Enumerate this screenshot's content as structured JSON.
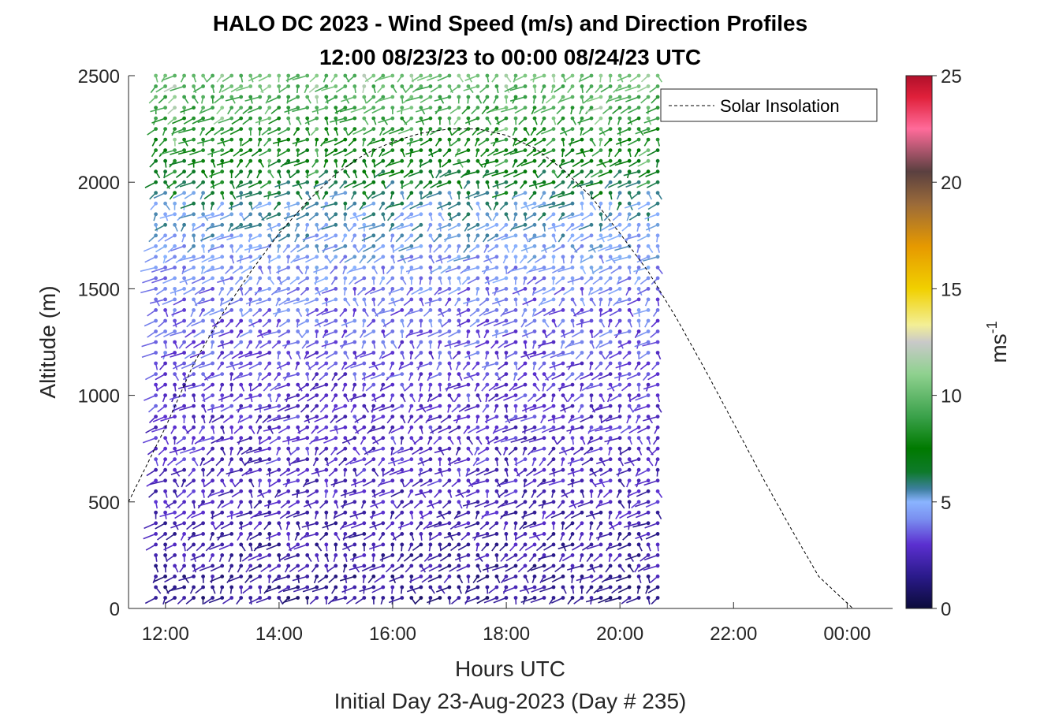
{
  "chart_data": {
    "type": "wind-barb-profile",
    "title_line1": "HALO DC 2023 - Wind Speed (m/s) and Direction Profiles",
    "title_line2": "12:00 08/23/23 to 00:00 08/24/23  UTC",
    "xlabel": "Hours UTC",
    "xlabel2": "Initial Day 23-Aug-2023 (Day # 235)",
    "ylabel": "Altitude (m)",
    "xlim": [
      11.35,
      24.8
    ],
    "ylim": [
      0,
      2500
    ],
    "x_ticks": [
      {
        "value": 12,
        "label": "12:00"
      },
      {
        "value": 14,
        "label": "14:00"
      },
      {
        "value": 16,
        "label": "16:00"
      },
      {
        "value": 18,
        "label": "18:00"
      },
      {
        "value": 20,
        "label": "20:00"
      },
      {
        "value": 22,
        "label": "22:00"
      },
      {
        "value": 24,
        "label": "00:00"
      }
    ],
    "y_ticks": [
      0,
      500,
      1000,
      1500,
      2000,
      2500
    ],
    "legend": {
      "entry": "Solar Insolation",
      "placement": "top-right"
    },
    "colorbar": {
      "label": "ms",
      "exponent": "-1",
      "min": 0,
      "max": 25,
      "ticks": [
        0,
        5,
        10,
        15,
        20,
        25
      ]
    },
    "solar_insolation_curve": [
      {
        "x": 11.35,
        "y": 500
      },
      {
        "x": 12.0,
        "y": 850
      },
      {
        "x": 12.5,
        "y": 1150
      },
      {
        "x": 13.0,
        "y": 1380
      },
      {
        "x": 13.5,
        "y": 1580
      },
      {
        "x": 14.0,
        "y": 1760
      },
      {
        "x": 14.5,
        "y": 1910
      },
      {
        "x": 15.0,
        "y": 2040
      },
      {
        "x": 15.5,
        "y": 2130
      },
      {
        "x": 16.0,
        "y": 2190
      },
      {
        "x": 16.5,
        "y": 2230
      },
      {
        "x": 17.0,
        "y": 2250
      },
      {
        "x": 17.5,
        "y": 2250
      },
      {
        "x": 18.0,
        "y": 2220
      },
      {
        "x": 18.5,
        "y": 2160
      },
      {
        "x": 19.0,
        "y": 2060
      },
      {
        "x": 19.5,
        "y": 1930
      },
      {
        "x": 20.0,
        "y": 1760
      },
      {
        "x": 20.5,
        "y": 1580
      },
      {
        "x": 21.0,
        "y": 1360
      },
      {
        "x": 21.5,
        "y": 1120
      },
      {
        "x": 22.0,
        "y": 870
      },
      {
        "x": 22.5,
        "y": 620
      },
      {
        "x": 23.0,
        "y": 380
      },
      {
        "x": 23.5,
        "y": 150
      },
      {
        "x": 24.1,
        "y": 0
      },
      {
        "x": 24.8,
        "y": 0
      }
    ],
    "barbs": {
      "x_start": 11.83,
      "x_step": 0.1667,
      "x_end": 20.83,
      "y_start": 50,
      "y_step": 50,
      "y_end": 2500,
      "speed_profile_ms": [
        {
          "y": 0,
          "speed": 1.5
        },
        {
          "y": 500,
          "speed": 2.5
        },
        {
          "y": 1000,
          "speed": 3.0
        },
        {
          "y": 1500,
          "speed": 4.0
        },
        {
          "y": 1900,
          "speed": 5.5
        },
        {
          "y": 2200,
          "speed": 8.0
        },
        {
          "y": 2500,
          "speed": 10.0
        }
      ],
      "direction_deg_typical": 250
    }
  },
  "colors": {
    "colormap_stops": [
      {
        "v": 0.0,
        "c": "#0b0b3a"
      },
      {
        "v": 1.5,
        "c": "#2a1a8a"
      },
      {
        "v": 3.0,
        "c": "#5b2fd0"
      },
      {
        "v": 4.2,
        "c": "#7a8ff0"
      },
      {
        "v": 5.0,
        "c": "#8ab4ff"
      },
      {
        "v": 5.6,
        "c": "#3d7f9f"
      },
      {
        "v": 6.4,
        "c": "#0e7a2b"
      },
      {
        "v": 7.5,
        "c": "#007a00"
      },
      {
        "v": 9.0,
        "c": "#3aa14a"
      },
      {
        "v": 11.0,
        "c": "#8fd18f"
      },
      {
        "v": 12.5,
        "c": "#c9c9c9"
      },
      {
        "v": 13.3,
        "c": "#f3ef96"
      },
      {
        "v": 15.0,
        "c": "#f1d000"
      },
      {
        "v": 17.0,
        "c": "#e69900"
      },
      {
        "v": 19.0,
        "c": "#9a6a3a"
      },
      {
        "v": 20.5,
        "c": "#5a4040"
      },
      {
        "v": 22.5,
        "c": "#ff6b9a"
      },
      {
        "v": 24.0,
        "c": "#e0203a"
      },
      {
        "v": 25.0,
        "c": "#b0102a"
      }
    ]
  }
}
